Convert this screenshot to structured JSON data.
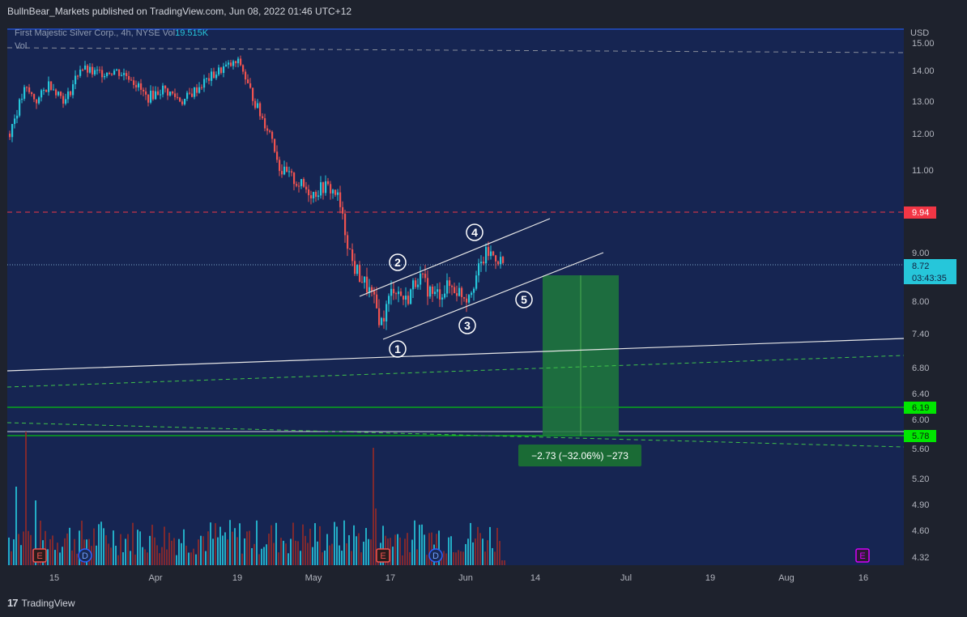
{
  "header": {
    "publisher_line": "BullnBear_Markets published on TradingView.com, Jun 08, 2022 01:46 UTC+12"
  },
  "legend": {
    "symbol_info": "First Majestic Silver Corp., 4h, NYSE",
    "vol_prefix": "Vol",
    "vol_value": "19.515K",
    "vol_pane_label": "Vol"
  },
  "price_axis": {
    "currency": "USD",
    "ticks": [
      "15.00",
      "14.00",
      "13.00",
      "12.00",
      "11.00",
      "9.00",
      "8.00",
      "7.40",
      "6.80",
      "6.40",
      "6.00",
      "5.60",
      "5.20",
      "4.90",
      "4.60",
      "4.32"
    ]
  },
  "time_axis": {
    "ticks": [
      "15",
      "Apr",
      "19",
      "May",
      "17",
      "Jun",
      "14",
      "Jul",
      "19",
      "Aug",
      "16"
    ]
  },
  "badges": {
    "red_level": "9.94",
    "current_price": "8.72",
    "countdown": "03:43:35",
    "green_level_1": "6.19",
    "green_level_2": "5.78"
  },
  "measure_label": "−2.73 (−32.06%) −273",
  "wave_labels": [
    "1",
    "2",
    "3",
    "4",
    "5"
  ],
  "events": {
    "earnings": "E",
    "dividend": "D"
  },
  "footer": {
    "brand": "TradingView",
    "logo": "17"
  },
  "colors": {
    "up": "#26c6da",
    "down": "#ef5350",
    "red_level": "#f23645",
    "green_level": "#00e600",
    "target_box": "#1e7a3c"
  },
  "chart_data": {
    "type": "candlestick",
    "symbol": "First Majestic Silver Corp.",
    "interval": "4h",
    "exchange": "NYSE",
    "currency": "USD",
    "ylim": [
      4.32,
      15.2
    ],
    "horizontal_levels": [
      {
        "value": 9.94,
        "style": "dashed",
        "color": "red"
      },
      {
        "value": 6.19,
        "style": "solid",
        "color": "green"
      },
      {
        "value": 5.78,
        "style": "solid",
        "color": "green"
      }
    ],
    "current_price": 8.72,
    "measurement": {
      "from": 8.51,
      "to": 5.78,
      "change": -2.73,
      "percent": -32.06,
      "ticks": -273
    },
    "price_path": [
      {
        "date": "Mar 10",
        "price": 12.0
      },
      {
        "date": "Mar 14",
        "price": 13.2
      },
      {
        "date": "Mar 18",
        "price": 14.0
      },
      {
        "date": "Mar 24",
        "price": 14.1
      },
      {
        "date": "Mar 30",
        "price": 13.7
      },
      {
        "date": "Apr 04",
        "price": 13.0
      },
      {
        "date": "Apr 08",
        "price": 13.5
      },
      {
        "date": "Apr 14",
        "price": 14.1
      },
      {
        "date": "Apr 19",
        "price": 14.4
      },
      {
        "date": "Apr 21",
        "price": 13.2
      },
      {
        "date": "Apr 25",
        "price": 11.3
      },
      {
        "date": "Apr 29",
        "price": 10.6
      },
      {
        "date": "May 04",
        "price": 10.3
      },
      {
        "date": "May 06",
        "price": 10.1
      },
      {
        "date": "May 09",
        "price": 8.7
      },
      {
        "date": "May 12",
        "price": 7.6
      },
      {
        "date": "May 13",
        "price": 8.2
      },
      {
        "date": "May 18",
        "price": 8.3
      },
      {
        "date": "May 24",
        "price": 8.1
      },
      {
        "date": "May 31",
        "price": 8.2
      },
      {
        "date": "Jun 03",
        "price": 9.0
      },
      {
        "date": "Jun 07",
        "price": 8.72
      }
    ]
  }
}
